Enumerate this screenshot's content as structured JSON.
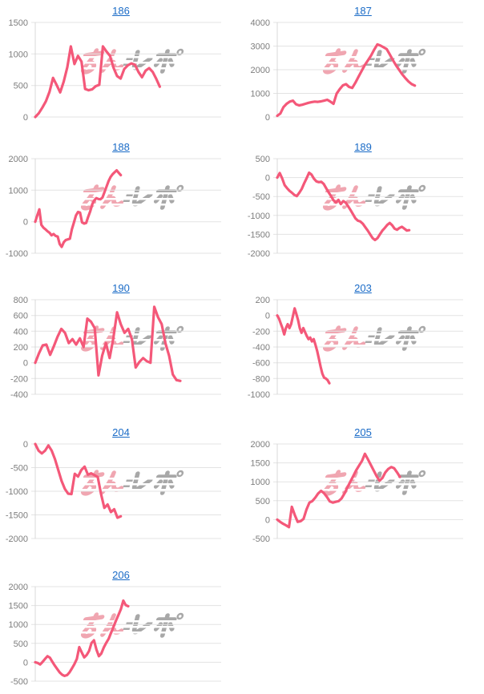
{
  "colors": {
    "line": "#f45879",
    "grid": "#e3e3e3",
    "axis": "#d8d8d8",
    "tick_label": "#7d7d7d",
    "link": "#1a6bc7",
    "background": "#ffffff"
  },
  "watermark": {
    "text": "みんレポ",
    "pink_part": "みん",
    "gray_part": "レポ",
    "pink_color": "#f0a6b1",
    "gray_color": "#a8a8a8"
  },
  "chart_data": [
    {
      "type": "line",
      "title": "186",
      "ylim": [
        0,
        1500
      ],
      "y_ticks": [
        0,
        500,
        1000,
        1500
      ],
      "x_span": 0.67,
      "grid": true,
      "x_tick_labels": [],
      "values": [
        0,
        60,
        150,
        250,
        400,
        620,
        510,
        390,
        560,
        790,
        1120,
        840,
        970,
        880,
        445,
        425,
        440,
        490,
        510,
        1120,
        1040,
        970,
        780,
        650,
        610,
        760,
        820,
        850,
        830,
        715,
        630,
        735,
        775,
        715,
        605,
        480
      ]
    },
    {
      "type": "line",
      "title": "187",
      "ylim": [
        0,
        4000
      ],
      "y_ticks": [
        0,
        1000,
        2000,
        3000,
        4000
      ],
      "x_span": 0.74,
      "grid": true,
      "x_tick_labels": [],
      "values": [
        50,
        150,
        420,
        560,
        650,
        690,
        540,
        490,
        520,
        560,
        600,
        630,
        650,
        640,
        660,
        690,
        730,
        650,
        560,
        990,
        1180,
        1340,
        1390,
        1270,
        1230,
        1450,
        1700,
        1950,
        2200,
        2400,
        2600,
        2850,
        3070,
        3020,
        2950,
        2870,
        2640,
        2400,
        2180,
        1990,
        1800,
        1640,
        1500,
        1390,
        1330
      ]
    },
    {
      "type": "line",
      "title": "188",
      "ylim": [
        -1000,
        2000
      ],
      "y_ticks": [
        -1000,
        0,
        1000,
        2000
      ],
      "x_span": 0.46,
      "grid": true,
      "x_tick_labels": [],
      "values": [
        0,
        200,
        390,
        -100,
        -190,
        -240,
        -300,
        -350,
        -430,
        -390,
        -450,
        -470,
        -710,
        -800,
        -650,
        -580,
        -560,
        -540,
        -240,
        -20,
        200,
        310,
        290,
        -20,
        -60,
        -40,
        160,
        330,
        550,
        680,
        750,
        720,
        710,
        770,
        940,
        1110,
        1290,
        1420,
        1510,
        1570,
        1630,
        1550,
        1480
      ]
    },
    {
      "type": "line",
      "title": "189",
      "ylim": [
        -2000,
        500
      ],
      "y_ticks": [
        -2000,
        -1500,
        -1000,
        -500,
        0,
        500
      ],
      "x_span": 0.71,
      "grid": true,
      "x_tick_labels": [],
      "values": [
        0,
        120,
        -20,
        -200,
        -280,
        -350,
        -400,
        -460,
        -490,
        -400,
        -300,
        -150,
        -20,
        130,
        80,
        -30,
        -100,
        -120,
        -110,
        -170,
        -280,
        -390,
        -490,
        -600,
        -660,
        -590,
        -700,
        -620,
        -660,
        -760,
        -860,
        -970,
        -1080,
        -1140,
        -1160,
        -1220,
        -1310,
        -1400,
        -1500,
        -1600,
        -1650,
        -1600,
        -1500,
        -1400,
        -1330,
        -1250,
        -1200,
        -1260,
        -1350,
        -1380,
        -1330,
        -1300,
        -1350,
        -1400,
        -1390
      ]
    },
    {
      "type": "line",
      "title": "190",
      "ylim": [
        -400,
        800
      ],
      "y_ticks": [
        -400,
        -200,
        0,
        200,
        400,
        600,
        800
      ],
      "x_span": 0.78,
      "grid": true,
      "x_tick_labels": [],
      "values": [
        0,
        120,
        220,
        230,
        100,
        210,
        330,
        430,
        380,
        250,
        300,
        230,
        310,
        200,
        560,
        520,
        440,
        -160,
        90,
        250,
        60,
        310,
        640,
        490,
        380,
        430,
        300,
        -60,
        10,
        60,
        20,
        0,
        710,
        580,
        490,
        250,
        90,
        -150,
        -220,
        -230
      ]
    },
    {
      "type": "line",
      "title": "203",
      "ylim": [
        -1000,
        200
      ],
      "y_ticks": [
        -1000,
        -800,
        -600,
        -400,
        -200,
        0,
        200
      ],
      "x_span": 0.28,
      "grid": true,
      "x_tick_labels": [],
      "values": [
        0,
        -40,
        -100,
        -160,
        -240,
        -160,
        -110,
        -160,
        -110,
        -10,
        90,
        20,
        -60,
        -160,
        -220,
        -160,
        -210,
        -260,
        -300,
        -280,
        -330,
        -300,
        -370,
        -450,
        -550,
        -650,
        -740,
        -790,
        -800,
        -820,
        -860
      ]
    },
    {
      "type": "line",
      "title": "204",
      "ylim": [
        -2000,
        0
      ],
      "y_ticks": [
        -2000,
        -1500,
        -1000,
        -500,
        0
      ],
      "x_span": 0.46,
      "grid": true,
      "x_tick_labels": [],
      "values": [
        0,
        -140,
        -200,
        -140,
        -30,
        -140,
        -320,
        -550,
        -780,
        -950,
        -1050,
        -1060,
        -630,
        -690,
        -550,
        -480,
        -650,
        -620,
        -660,
        -700,
        -1060,
        -1350,
        -1280,
        -1440,
        -1380,
        -1560,
        -1530
      ]
    },
    {
      "type": "line",
      "title": "205",
      "ylim": [
        -500,
        2000
      ],
      "y_ticks": [
        -500,
        0,
        500,
        1000,
        1500,
        2000
      ],
      "x_span": 0.66,
      "grid": true,
      "x_tick_labels": [],
      "values": [
        0,
        -60,
        -110,
        -150,
        -200,
        340,
        120,
        -60,
        -40,
        20,
        270,
        450,
        490,
        580,
        690,
        760,
        700,
        600,
        480,
        450,
        470,
        490,
        560,
        690,
        850,
        1000,
        1150,
        1300,
        1430,
        1550,
        1740,
        1600,
        1450,
        1300,
        1150,
        1030,
        1100,
        1250,
        1340,
        1390,
        1360,
        1250,
        1130
      ]
    },
    {
      "type": "line",
      "title": "206",
      "ylim": [
        -500,
        2000
      ],
      "y_ticks": [
        -500,
        0,
        500,
        1000,
        1500,
        2000
      ],
      "x_span": 0.5,
      "grid": true,
      "x_tick_labels": [],
      "values": [
        0,
        -20,
        -60,
        10,
        90,
        160,
        120,
        10,
        -90,
        -180,
        -270,
        -330,
        -360,
        -340,
        -270,
        -160,
        -50,
        90,
        400,
        260,
        130,
        190,
        300,
        510,
        580,
        340,
        160,
        230,
        390,
        510,
        620,
        780,
        940,
        1100,
        1250,
        1400,
        1630,
        1510,
        1480
      ]
    }
  ]
}
